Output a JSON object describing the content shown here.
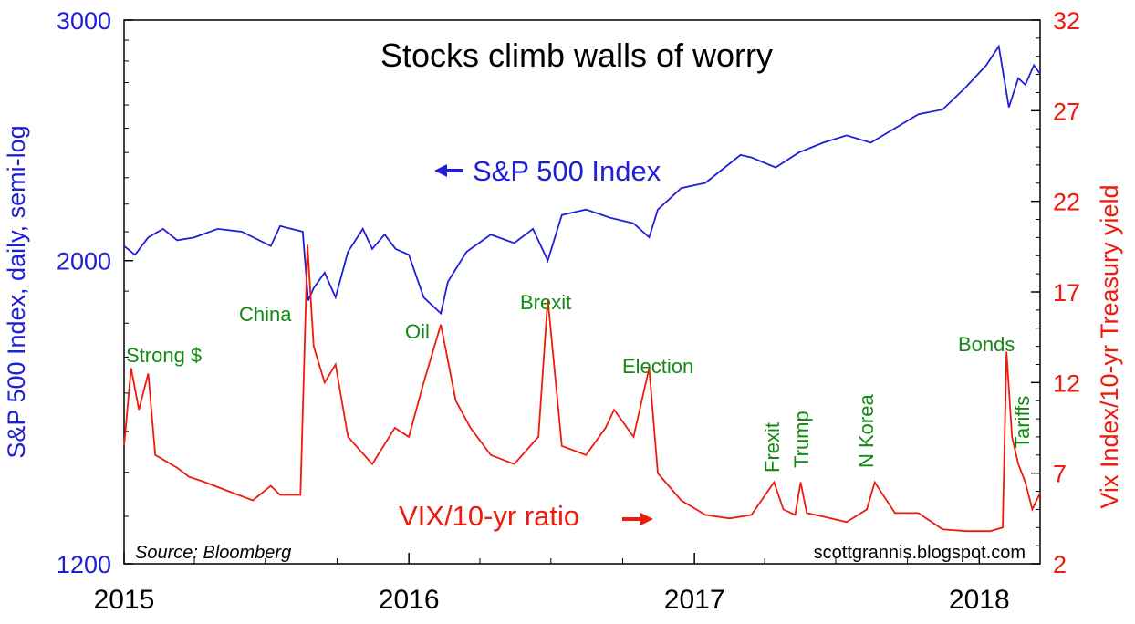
{
  "chart_data": {
    "type": "line",
    "title": "Stocks climb walls of worry",
    "source": "Source: Bloomberg",
    "credit": "scottgrannis.blogspot.com",
    "x_tick_labels": [
      "2015",
      "2016",
      "2017",
      "2018"
    ],
    "xlim": [
      "2015-01-01",
      "2018-03-20"
    ],
    "y_left": {
      "label": "S&P 500 Index, daily, semi-log",
      "scale": "log",
      "range": [
        1200,
        3000
      ],
      "ticks": [
        1200,
        2000,
        3000
      ],
      "tick_labels": [
        "1200",
        "2000",
        "3000"
      ]
    },
    "y_right": {
      "label": "Vix Index/10-yr Treasury yield",
      "scale": "linear",
      "range": [
        2,
        32
      ],
      "ticks": [
        2,
        7,
        12,
        17,
        22,
        27,
        32
      ],
      "tick_labels": [
        "2",
        "7",
        "12",
        "17",
        "22",
        "27",
        "32"
      ]
    },
    "series": [
      {
        "name": "S&P 500 Index",
        "axis": "left",
        "color": "#1f1fd8",
        "x": [
          "2015-01-01",
          "2015-01-15",
          "2015-02-01",
          "2015-02-20",
          "2015-03-10",
          "2015-04-01",
          "2015-05-01",
          "2015-06-01",
          "2015-07-08",
          "2015-07-20",
          "2015-08-18",
          "2015-08-25",
          "2015-09-01",
          "2015-09-15",
          "2015-09-29",
          "2015-10-15",
          "2015-11-03",
          "2015-11-15",
          "2015-12-01",
          "2015-12-15",
          "2016-01-01",
          "2016-01-20",
          "2016-02-11",
          "2016-02-20",
          "2016-03-15",
          "2016-04-15",
          "2016-05-15",
          "2016-06-08",
          "2016-06-27",
          "2016-07-15",
          "2016-08-15",
          "2016-09-15",
          "2016-10-15",
          "2016-11-04",
          "2016-11-15",
          "2016-12-15",
          "2017-01-15",
          "2017-03-01",
          "2017-03-15",
          "2017-04-15",
          "2017-05-15",
          "2017-06-15",
          "2017-07-15",
          "2017-08-15",
          "2017-09-15",
          "2017-10-15",
          "2017-11-15",
          "2017-12-15",
          "2018-01-10",
          "2018-01-26",
          "2018-02-08",
          "2018-02-20",
          "2018-03-01",
          "2018-03-12",
          "2018-03-20"
        ],
        "y": [
          2050,
          2020,
          2080,
          2110,
          2070,
          2080,
          2110,
          2100,
          2050,
          2120,
          2100,
          1870,
          1910,
          1960,
          1880,
          2030,
          2110,
          2040,
          2090,
          2040,
          2020,
          1880,
          1830,
          1930,
          2030,
          2090,
          2060,
          2110,
          2000,
          2160,
          2180,
          2150,
          2130,
          2080,
          2180,
          2260,
          2280,
          2390,
          2380,
          2340,
          2400,
          2440,
          2470,
          2440,
          2500,
          2560,
          2580,
          2680,
          2780,
          2870,
          2590,
          2720,
          2690,
          2780,
          2740
        ]
      },
      {
        "name": "VIX/10-yr ratio",
        "axis": "right",
        "color": "#ee1a0c",
        "x": [
          "2015-01-01",
          "2015-01-10",
          "2015-01-20",
          "2015-02-01",
          "2015-02-10",
          "2015-03-10",
          "2015-03-25",
          "2015-04-15",
          "2015-05-15",
          "2015-06-15",
          "2015-07-08",
          "2015-07-20",
          "2015-08-15",
          "2015-08-24",
          "2015-09-01",
          "2015-09-15",
          "2015-09-29",
          "2015-10-15",
          "2015-11-15",
          "2015-12-14",
          "2016-01-01",
          "2016-01-20",
          "2016-02-11",
          "2016-03-01",
          "2016-03-20",
          "2016-04-15",
          "2016-05-15",
          "2016-06-15",
          "2016-06-27",
          "2016-07-15",
          "2016-08-15",
          "2016-09-09",
          "2016-09-20",
          "2016-10-15",
          "2016-11-04",
          "2016-11-15",
          "2016-12-15",
          "2017-01-15",
          "2017-02-15",
          "2017-03-15",
          "2017-04-13",
          "2017-04-25",
          "2017-05-10",
          "2017-05-17",
          "2017-05-25",
          "2017-06-15",
          "2017-07-15",
          "2017-08-10",
          "2017-08-20",
          "2017-09-15",
          "2017-10-15",
          "2017-11-15",
          "2017-12-15",
          "2018-01-15",
          "2018-01-31",
          "2018-02-05",
          "2018-02-12",
          "2018-02-20",
          "2018-03-01",
          "2018-03-10",
          "2018-03-20"
        ],
        "y": [
          8.5,
          12.8,
          10.5,
          12.5,
          8,
          7.3,
          6.8,
          6.5,
          6,
          5.5,
          6.3,
          5.8,
          5.8,
          19.6,
          14,
          12,
          13,
          9,
          7.5,
          9.5,
          9,
          12,
          15.2,
          11,
          9.5,
          8,
          7.5,
          9,
          16.6,
          8.5,
          8,
          9.5,
          10.5,
          9,
          12.8,
          7,
          5.5,
          4.7,
          4.5,
          4.7,
          6.5,
          5,
          4.7,
          6.5,
          4.8,
          4.6,
          4.3,
          5,
          6.5,
          4.8,
          4.8,
          3.9,
          3.8,
          3.8,
          4,
          13.7,
          9,
          7.5,
          6.5,
          5,
          5.9
        ]
      }
    ],
    "annotations": [
      {
        "text": "S&P 500 Index",
        "arrow": "left"
      },
      {
        "text": "VIX/10-yr ratio",
        "arrow": "right"
      },
      {
        "text": "Strong $"
      },
      {
        "text": "China"
      },
      {
        "text": "Oil"
      },
      {
        "text": "Brexit"
      },
      {
        "text": "Election"
      },
      {
        "text": "Frexit",
        "rotated": true
      },
      {
        "text": "Trump",
        "rotated": true
      },
      {
        "text": "N Korea",
        "rotated": true
      },
      {
        "text": "Bonds"
      },
      {
        "text": "Tariffs",
        "rotated": true
      }
    ]
  }
}
